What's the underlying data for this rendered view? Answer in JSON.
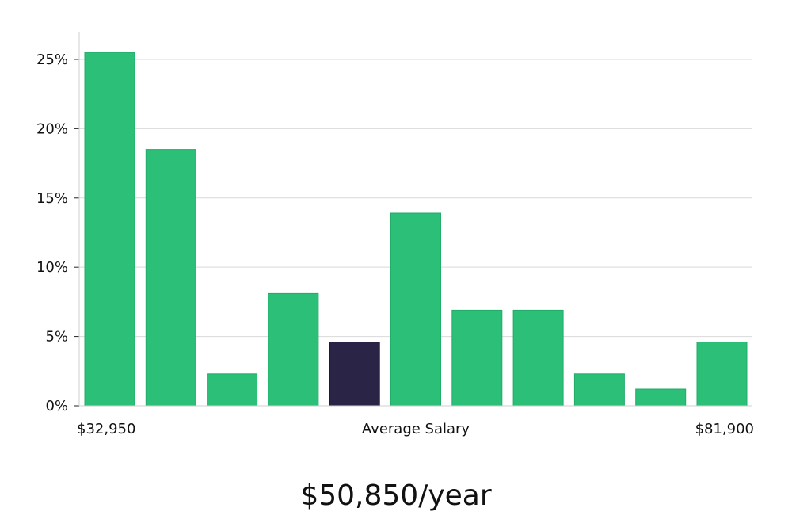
{
  "chart_data": {
    "type": "bar",
    "title": "",
    "xlabel": "Average Salary",
    "ylabel": "",
    "x_range_labels": [
      "$32,950",
      "$81,900"
    ],
    "values": [
      25.5,
      18.5,
      2.3,
      8.1,
      4.6,
      13.9,
      6.9,
      6.9,
      2.3,
      1.2,
      4.6
    ],
    "highlight_index": 4,
    "ylim": [
      0,
      27
    ],
    "yticks": [
      0,
      5,
      10,
      15,
      20,
      25
    ],
    "ytick_labels": [
      "0%",
      "5%",
      "10%",
      "15%",
      "20%",
      "25%"
    ],
    "grid": true,
    "bar_color": "#2bbf77",
    "highlight_color": "#2a2546",
    "grid_color": "#d9d9d9"
  },
  "headline": {
    "salary_text": "$50,850/year"
  }
}
